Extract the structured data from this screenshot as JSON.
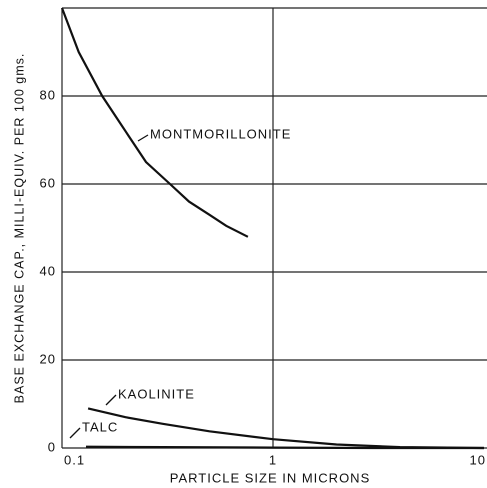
{
  "chart_data": {
    "type": "line",
    "x_label": "PARTICLE SIZE IN MICRONS",
    "y_label": "BASE EXCHANGE CAP., MILLI-EQUIV. PER 100 gms.",
    "xscale": "log",
    "xlim": [
      0.1,
      10
    ],
    "ylim": [
      0,
      100
    ],
    "xticks": [
      0.1,
      1,
      10
    ],
    "yticks": [
      0,
      20,
      40,
      60,
      80
    ],
    "grid": true,
    "series": [
      {
        "name": "MONTMORILLONITE",
        "color": "#111111",
        "x": [
          0.1,
          0.12,
          0.155,
          0.2,
          0.25,
          0.325,
          0.4,
          0.5,
          0.6,
          0.76
        ],
        "values": [
          100,
          90,
          80,
          72,
          65,
          60,
          56,
          53,
          50.5,
          48
        ]
      },
      {
        "name": "KAOLINITE",
        "color": "#111111",
        "x": [
          0.133,
          0.2,
          0.3,
          0.5,
          1,
          2,
          4,
          10
        ],
        "values": [
          9,
          7,
          5.5,
          3.8,
          2,
          0.8,
          0.2,
          0
        ]
      },
      {
        "name": "TALC",
        "color": "#111111",
        "x": [
          0.13,
          0.3,
          1,
          3,
          10
        ],
        "values": [
          0.3,
          0.2,
          0.1,
          0,
          0
        ]
      }
    ]
  }
}
